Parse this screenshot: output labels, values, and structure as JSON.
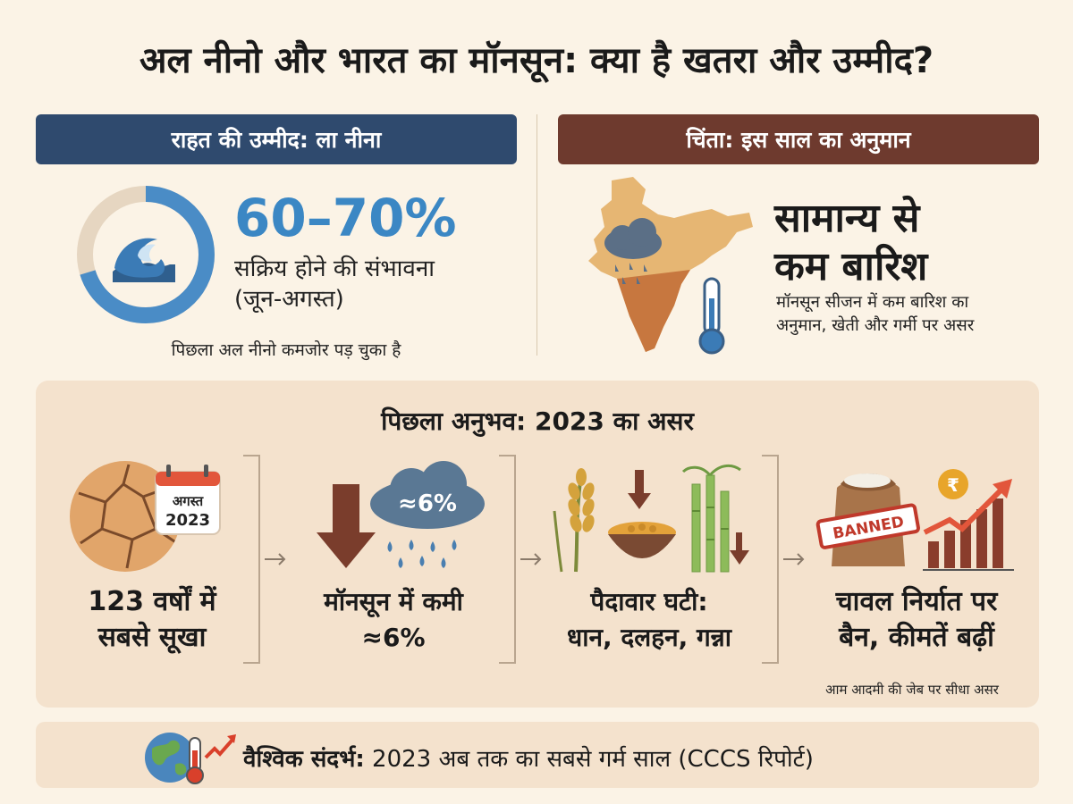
{
  "title": "अल नीनो और भारत का मॉनसून: क्या है खतरा और उम्मीद?",
  "left": {
    "banner": "राहत की उम्मीद: ला नीना",
    "percentage": "60–70%",
    "label_line1": "सक्रिय होने की संभावना",
    "label_line2": "(जून-अगस्त)",
    "note": "पिछला अल नीनो कमजोर पड़ चुका है"
  },
  "right": {
    "banner": "चिंता: इस साल का अनुमान",
    "heading_line1": "सामान्य से",
    "heading_line2": "कम बारिश",
    "desc_line1": "मॉनसून सीजन में कम बारिश का",
    "desc_line2": "अनुमान, खेती और गर्मी पर असर"
  },
  "middle": {
    "title": "पिछला अनुभव: 2023 का असर",
    "steps": [
      {
        "icon": "cracked-earth-calendar-icon",
        "calendar_month": "अगस्त",
        "calendar_year": "2023",
        "line1": "123 वर्षों में",
        "line2": "सबसे सूखा"
      },
      {
        "icon": "rain-cloud-down-arrow-icon",
        "cloud_label": "≈6%",
        "line1": "मॉनसून में कमी",
        "line2": "≈6%"
      },
      {
        "icon": "crops-lentils-sugarcane-icon",
        "line1": "पैदावार घटी:",
        "line2": "धान, दलहन, गन्ना"
      },
      {
        "icon": "rice-sack-banned-rising-chart-icon",
        "stamp": "BANNED",
        "coin": "₹",
        "line1": "चावल निर्यात पर",
        "line2": "बैन, कीमतें बढ़ीं"
      }
    ],
    "footnote": "आम आदमी की जेब पर सीधा असर"
  },
  "bottom": {
    "bold": "वैश्विक संदर्भ:",
    "text": "2023 अब तक का सबसे गर्म साल (CCCS रिपोर्ट)"
  },
  "colors": {
    "background": "#fbf3e6",
    "blue_banner": "#2f4a6e",
    "brown_banner": "#6e3a2e",
    "accent_blue": "#3b87c4",
    "panel": "#f4e2cd"
  }
}
